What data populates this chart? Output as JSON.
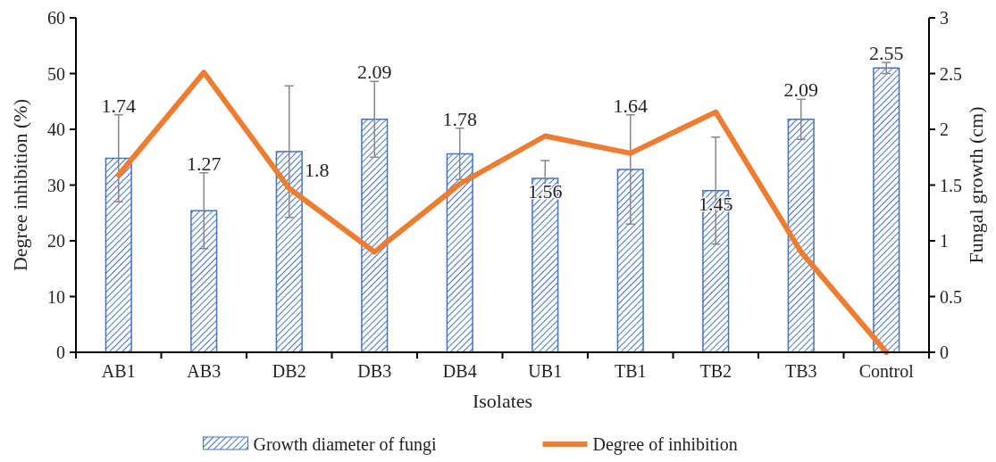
{
  "chart_data": {
    "type": "bar",
    "xlabel": "Isolates",
    "ylabel": "Degree inhibition (%)",
    "y2label": "Fungal growth (cm)",
    "categories": [
      "AB1",
      "AB3",
      "DB2",
      "DB3",
      "DB4",
      "UB1",
      "TB1",
      "TB2",
      "TB3",
      "Control"
    ],
    "series": [
      {
        "name": "Growth diameter of fungi",
        "axis": "y2",
        "color": "#4472c4",
        "values": [
          1.74,
          1.27,
          1.8,
          2.09,
          1.78,
          1.56,
          1.64,
          1.45,
          2.09,
          2.55
        ],
        "errors": [
          0.39,
          0.34,
          0.59,
          0.34,
          0.23,
          0.16,
          0.49,
          0.48,
          0.18,
          0.05
        ],
        "data_labels": true
      },
      {
        "name": "Degree of inhibition",
        "type": "line",
        "axis": "y",
        "color": "#ed7d31",
        "values": [
          31.8,
          50.2,
          29.4,
          18,
          30.2,
          38.8,
          35.7,
          43.1,
          18,
          0
        ],
        "marker": "none",
        "line_style": "solid"
      }
    ],
    "ylim": [
      0,
      60
    ],
    "yticks": [
      0,
      10,
      20,
      30,
      40,
      50,
      60
    ],
    "y2lim": [
      0,
      3
    ],
    "y2ticks": [
      0,
      0.5,
      1,
      1.5,
      2,
      2.5,
      3
    ],
    "grid": false,
    "legend": "bottom"
  }
}
